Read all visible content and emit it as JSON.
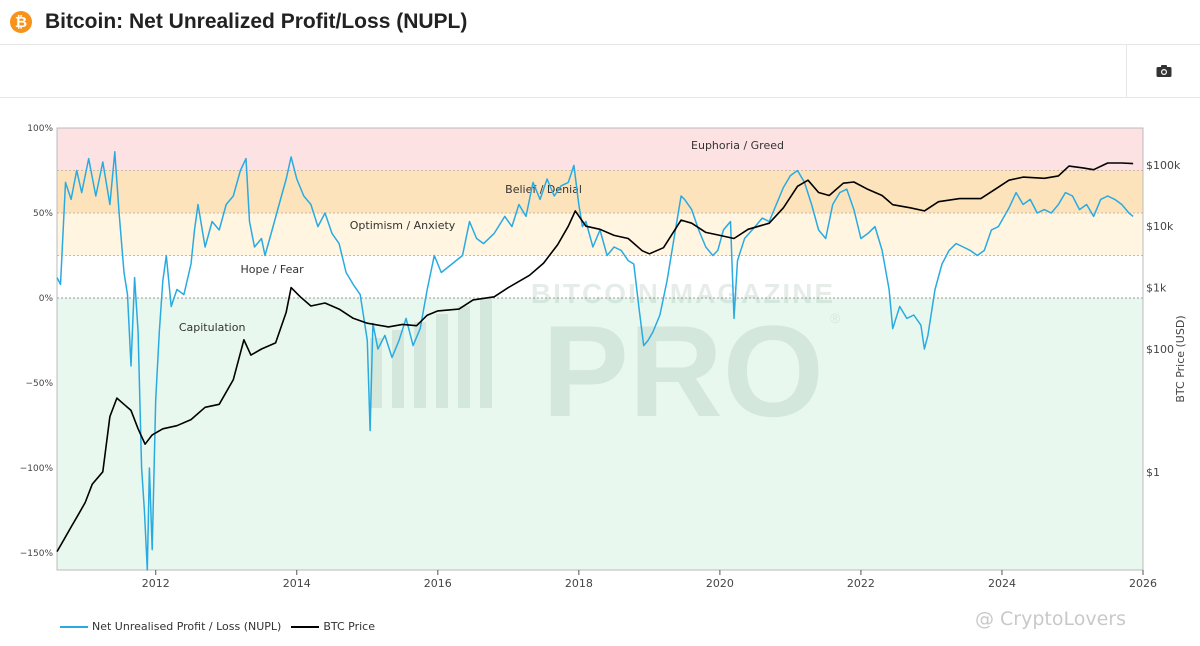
{
  "header": {
    "logo_symbol": "₿",
    "title": "Bitcoin: Net Unrealized Profit/Loss (NUPL)"
  },
  "watermark": {
    "brand_top": "BITCOIN MAGAZINE",
    "brand_main": "PRO",
    "brand_mark": "®",
    "overlay": "@ CryptoLovers"
  },
  "colors": {
    "nupl": "#29abe2",
    "price": "#000000",
    "euphoria": "#fde2e4",
    "belief": "#fde3bb",
    "optimism": "#fff5e0",
    "capitulation": "#e9f8ef"
  },
  "chart_data": {
    "type": "line",
    "title": "Bitcoin: Net Unrealized Profit/Loss (NUPL)",
    "xlabel": "",
    "ylabel_left": "",
    "ylabel_right": "BTC Price (USD)",
    "xlim": [
      2010.6,
      2026.0
    ],
    "ylim_left": [
      -160,
      100
    ],
    "ylim_right_log10": [
      -1.6,
      5.6
    ],
    "x_ticks": [
      2012,
      2014,
      2016,
      2018,
      2020,
      2022,
      2024,
      2026
    ],
    "x_tick_labels": [
      "2012",
      "2014",
      "2016",
      "2018",
      "2020",
      "2022",
      "2024",
      "2026"
    ],
    "y_left_ticks": [
      100,
      50,
      0,
      -50,
      -100,
      -150
    ],
    "y_left_tick_labels": [
      "100%",
      "50%",
      "0%",
      "−50%",
      "−100%",
      "−150%"
    ],
    "y_right_ticks_log10": [
      5,
      4,
      3,
      2,
      0
    ],
    "y_right_tick_labels": [
      "$100k",
      "$10k",
      "$1k",
      "$100",
      "$1"
    ],
    "zones": [
      {
        "name": "Euphoria / Greed",
        "from": 75,
        "to": 100,
        "color": "#fde2e4"
      },
      {
        "name": "Belief / Denial",
        "from": 50,
        "to": 75,
        "color": "#fde3bb"
      },
      {
        "name": "Optimism / Anxiety",
        "from": 25,
        "to": 50,
        "color": "#fff5e0"
      },
      {
        "name": "Hope / Fear",
        "from": 0,
        "to": 25,
        "color": "#ffffff"
      },
      {
        "name": "Capitulation",
        "from": -160,
        "to": 0,
        "color": "#e9f8ef"
      }
    ],
    "zone_labels": [
      {
        "text": "Euphoria / Greed",
        "x": 2020.25,
        "y": 90
      },
      {
        "text": "Belief / Denial",
        "x": 2017.5,
        "y": 64
      },
      {
        "text": "Optimism / Anxiety",
        "x": 2015.5,
        "y": 43
      },
      {
        "text": "Hope / Fear",
        "x": 2013.65,
        "y": 17
      },
      {
        "text": "Capitulation",
        "x": 2012.8,
        "y": -17
      }
    ],
    "legend": [
      "Net Unrealised Profit / Loss (NUPL)",
      "BTC Price"
    ],
    "series": [
      {
        "name": "Net Unrealised Profit / Loss (NUPL)",
        "axis": "left",
        "color": "#29abe2",
        "points": [
          [
            2010.6,
            12
          ],
          [
            2010.65,
            8
          ],
          [
            2010.72,
            68
          ],
          [
            2010.8,
            58
          ],
          [
            2010.88,
            75
          ],
          [
            2010.95,
            62
          ],
          [
            2011.05,
            82
          ],
          [
            2011.15,
            60
          ],
          [
            2011.25,
            80
          ],
          [
            2011.35,
            55
          ],
          [
            2011.42,
            86
          ],
          [
            2011.48,
            50
          ],
          [
            2011.55,
            15
          ],
          [
            2011.6,
            2
          ],
          [
            2011.65,
            -40
          ],
          [
            2011.7,
            12
          ],
          [
            2011.75,
            -20
          ],
          [
            2011.8,
            -100
          ],
          [
            2011.84,
            -125
          ],
          [
            2011.88,
            -160
          ],
          [
            2011.91,
            -100
          ],
          [
            2011.95,
            -148
          ],
          [
            2012.0,
            -60
          ],
          [
            2012.05,
            -20
          ],
          [
            2012.1,
            10
          ],
          [
            2012.15,
            25
          ],
          [
            2012.22,
            -5
          ],
          [
            2012.3,
            5
          ],
          [
            2012.4,
            2
          ],
          [
            2012.5,
            20
          ],
          [
            2012.55,
            40
          ],
          [
            2012.6,
            55
          ],
          [
            2012.7,
            30
          ],
          [
            2012.8,
            45
          ],
          [
            2012.9,
            40
          ],
          [
            2013.0,
            55
          ],
          [
            2013.1,
            60
          ],
          [
            2013.2,
            75
          ],
          [
            2013.28,
            82
          ],
          [
            2013.33,
            45
          ],
          [
            2013.4,
            30
          ],
          [
            2013.5,
            35
          ],
          [
            2013.55,
            25
          ],
          [
            2013.65,
            40
          ],
          [
            2013.75,
            55
          ],
          [
            2013.85,
            70
          ],
          [
            2013.92,
            83
          ],
          [
            2014.0,
            70
          ],
          [
            2014.1,
            60
          ],
          [
            2014.2,
            55
          ],
          [
            2014.3,
            42
          ],
          [
            2014.4,
            50
          ],
          [
            2014.5,
            38
          ],
          [
            2014.6,
            32
          ],
          [
            2014.7,
            15
          ],
          [
            2014.8,
            8
          ],
          [
            2014.9,
            2
          ],
          [
            2015.0,
            -25
          ],
          [
            2015.04,
            -78
          ],
          [
            2015.08,
            -15
          ],
          [
            2015.15,
            -30
          ],
          [
            2015.25,
            -22
          ],
          [
            2015.35,
            -35
          ],
          [
            2015.45,
            -25
          ],
          [
            2015.55,
            -12
          ],
          [
            2015.65,
            -28
          ],
          [
            2015.75,
            -18
          ],
          [
            2015.85,
            5
          ],
          [
            2015.95,
            25
          ],
          [
            2016.05,
            15
          ],
          [
            2016.2,
            20
          ],
          [
            2016.35,
            25
          ],
          [
            2016.45,
            45
          ],
          [
            2016.55,
            35
          ],
          [
            2016.65,
            32
          ],
          [
            2016.8,
            38
          ],
          [
            2016.95,
            48
          ],
          [
            2017.05,
            42
          ],
          [
            2017.15,
            55
          ],
          [
            2017.25,
            48
          ],
          [
            2017.35,
            68
          ],
          [
            2017.45,
            58
          ],
          [
            2017.55,
            70
          ],
          [
            2017.65,
            60
          ],
          [
            2017.75,
            66
          ],
          [
            2017.85,
            68
          ],
          [
            2017.93,
            78
          ],
          [
            2018.0,
            55
          ],
          [
            2018.05,
            42
          ],
          [
            2018.1,
            45
          ],
          [
            2018.2,
            30
          ],
          [
            2018.3,
            40
          ],
          [
            2018.4,
            25
          ],
          [
            2018.5,
            30
          ],
          [
            2018.6,
            28
          ],
          [
            2018.7,
            22
          ],
          [
            2018.78,
            20
          ],
          [
            2018.85,
            -5
          ],
          [
            2018.92,
            -28
          ],
          [
            2018.98,
            -25
          ],
          [
            2019.05,
            -20
          ],
          [
            2019.15,
            -10
          ],
          [
            2019.25,
            10
          ],
          [
            2019.35,
            35
          ],
          [
            2019.45,
            60
          ],
          [
            2019.5,
            58
          ],
          [
            2019.6,
            52
          ],
          [
            2019.7,
            40
          ],
          [
            2019.8,
            30
          ],
          [
            2019.9,
            25
          ],
          [
            2019.97,
            28
          ],
          [
            2020.05,
            40
          ],
          [
            2020.15,
            45
          ],
          [
            2020.2,
            -12
          ],
          [
            2020.25,
            22
          ],
          [
            2020.35,
            35
          ],
          [
            2020.5,
            42
          ],
          [
            2020.6,
            47
          ],
          [
            2020.7,
            45
          ],
          [
            2020.8,
            55
          ],
          [
            2020.9,
            65
          ],
          [
            2021.0,
            72
          ],
          [
            2021.1,
            75
          ],
          [
            2021.2,
            68
          ],
          [
            2021.3,
            55
          ],
          [
            2021.4,
            40
          ],
          [
            2021.5,
            35
          ],
          [
            2021.6,
            55
          ],
          [
            2021.7,
            62
          ],
          [
            2021.8,
            64
          ],
          [
            2021.9,
            52
          ],
          [
            2022.0,
            35
          ],
          [
            2022.1,
            38
          ],
          [
            2022.2,
            42
          ],
          [
            2022.3,
            28
          ],
          [
            2022.4,
            5
          ],
          [
            2022.45,
            -18
          ],
          [
            2022.55,
            -5
          ],
          [
            2022.65,
            -12
          ],
          [
            2022.75,
            -10
          ],
          [
            2022.85,
            -16
          ],
          [
            2022.9,
            -30
          ],
          [
            2022.95,
            -22
          ],
          [
            2023.05,
            5
          ],
          [
            2023.15,
            20
          ],
          [
            2023.25,
            28
          ],
          [
            2023.35,
            32
          ],
          [
            2023.45,
            30
          ],
          [
            2023.55,
            28
          ],
          [
            2023.65,
            25
          ],
          [
            2023.75,
            28
          ],
          [
            2023.85,
            40
          ],
          [
            2023.95,
            42
          ],
          [
            2024.1,
            53
          ],
          [
            2024.2,
            62
          ],
          [
            2024.3,
            55
          ],
          [
            2024.4,
            58
          ],
          [
            2024.5,
            50
          ],
          [
            2024.6,
            52
          ],
          [
            2024.7,
            50
          ],
          [
            2024.8,
            55
          ],
          [
            2024.9,
            62
          ],
          [
            2025.0,
            60
          ],
          [
            2025.1,
            52
          ],
          [
            2025.2,
            55
          ],
          [
            2025.3,
            48
          ],
          [
            2025.4,
            58
          ],
          [
            2025.5,
            60
          ],
          [
            2025.6,
            58
          ],
          [
            2025.7,
            55
          ],
          [
            2025.8,
            50
          ],
          [
            2025.86,
            48
          ]
        ]
      },
      {
        "name": "BTC Price",
        "axis": "right",
        "color": "#000000",
        "price_log10_points": [
          [
            2010.6,
            -1.3
          ],
          [
            2010.7,
            -1.1
          ],
          [
            2010.8,
            -0.9
          ],
          [
            2010.9,
            -0.7
          ],
          [
            2011.0,
            -0.5
          ],
          [
            2011.1,
            -0.2
          ],
          [
            2011.25,
            0.0
          ],
          [
            2011.35,
            0.9
          ],
          [
            2011.45,
            1.2
          ],
          [
            2011.55,
            1.1
          ],
          [
            2011.65,
            1.0
          ],
          [
            2011.75,
            0.7
          ],
          [
            2011.85,
            0.45
          ],
          [
            2011.95,
            0.6
          ],
          [
            2012.1,
            0.7
          ],
          [
            2012.3,
            0.75
          ],
          [
            2012.5,
            0.85
          ],
          [
            2012.7,
            1.05
          ],
          [
            2012.9,
            1.1
          ],
          [
            2013.1,
            1.5
          ],
          [
            2013.25,
            2.15
          ],
          [
            2013.35,
            1.9
          ],
          [
            2013.5,
            2.0
          ],
          [
            2013.7,
            2.1
          ],
          [
            2013.85,
            2.6
          ],
          [
            2013.92,
            3.0
          ],
          [
            2014.05,
            2.85
          ],
          [
            2014.2,
            2.7
          ],
          [
            2014.4,
            2.75
          ],
          [
            2014.6,
            2.65
          ],
          [
            2014.8,
            2.5
          ],
          [
            2015.0,
            2.42
          ],
          [
            2015.3,
            2.36
          ],
          [
            2015.5,
            2.4
          ],
          [
            2015.7,
            2.38
          ],
          [
            2015.85,
            2.55
          ],
          [
            2016.0,
            2.62
          ],
          [
            2016.3,
            2.65
          ],
          [
            2016.5,
            2.8
          ],
          [
            2016.8,
            2.85
          ],
          [
            2017.0,
            3.0
          ],
          [
            2017.3,
            3.2
          ],
          [
            2017.5,
            3.4
          ],
          [
            2017.7,
            3.7
          ],
          [
            2017.85,
            4.0
          ],
          [
            2017.95,
            4.25
          ],
          [
            2018.1,
            4.0
          ],
          [
            2018.3,
            3.95
          ],
          [
            2018.5,
            3.85
          ],
          [
            2018.7,
            3.8
          ],
          [
            2018.9,
            3.6
          ],
          [
            2019.0,
            3.55
          ],
          [
            2019.2,
            3.65
          ],
          [
            2019.45,
            4.1
          ],
          [
            2019.6,
            4.05
          ],
          [
            2019.8,
            3.9
          ],
          [
            2020.0,
            3.85
          ],
          [
            2020.2,
            3.8
          ],
          [
            2020.4,
            3.95
          ],
          [
            2020.7,
            4.05
          ],
          [
            2020.9,
            4.3
          ],
          [
            2021.1,
            4.65
          ],
          [
            2021.25,
            4.75
          ],
          [
            2021.4,
            4.55
          ],
          [
            2021.55,
            4.5
          ],
          [
            2021.75,
            4.7
          ],
          [
            2021.9,
            4.72
          ],
          [
            2022.1,
            4.6
          ],
          [
            2022.3,
            4.5
          ],
          [
            2022.45,
            4.35
          ],
          [
            2022.7,
            4.3
          ],
          [
            2022.9,
            4.25
          ],
          [
            2023.1,
            4.4
          ],
          [
            2023.4,
            4.45
          ],
          [
            2023.7,
            4.45
          ],
          [
            2023.9,
            4.6
          ],
          [
            2024.1,
            4.75
          ],
          [
            2024.3,
            4.8
          ],
          [
            2024.6,
            4.78
          ],
          [
            2024.8,
            4.82
          ],
          [
            2024.95,
            4.98
          ],
          [
            2025.15,
            4.95
          ],
          [
            2025.3,
            4.92
          ],
          [
            2025.5,
            5.03
          ],
          [
            2025.7,
            5.03
          ],
          [
            2025.86,
            5.02
          ]
        ]
      }
    ]
  }
}
